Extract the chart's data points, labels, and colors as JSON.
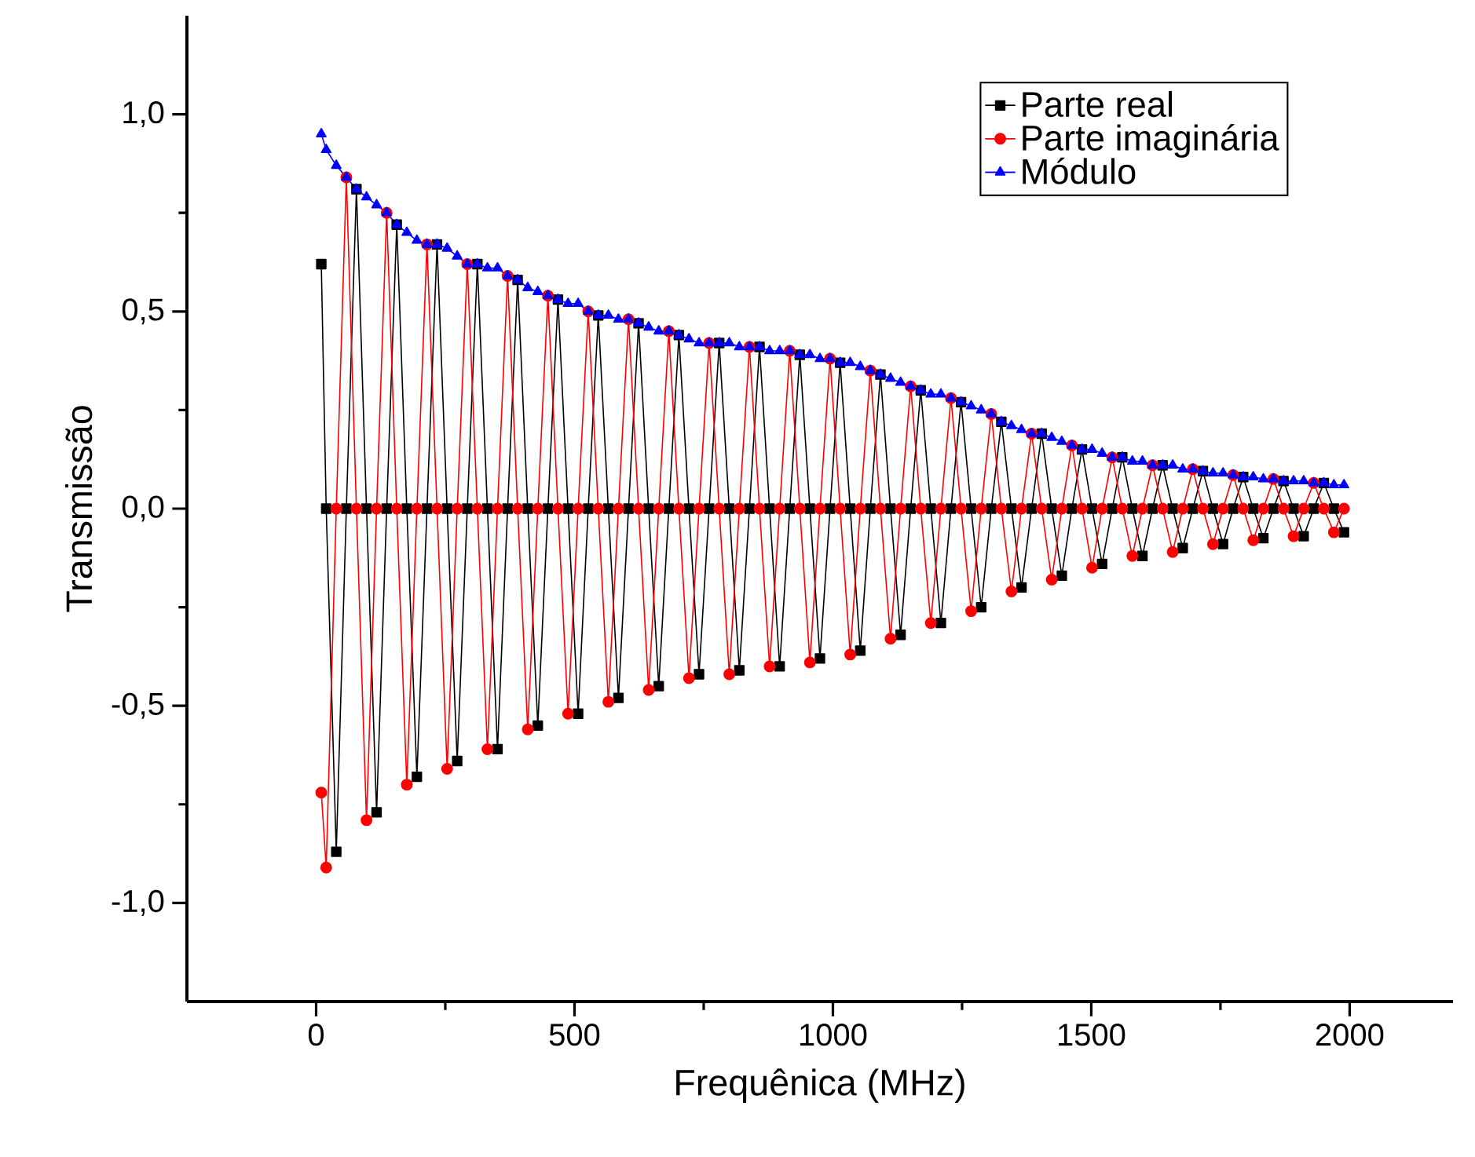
{
  "chart_data": {
    "type": "line",
    "xlabel": "Frequênica (MHz)",
    "ylabel": "Transmissão",
    "xlim": [
      -250,
      2200
    ],
    "ylim": [
      -1.25,
      1.25
    ],
    "xticks": [
      0,
      500,
      1000,
      1500,
      2000
    ],
    "yticks": [
      {
        "value": -1.0,
        "label": "-1,0"
      },
      {
        "value": -0.5,
        "label": "-0,5"
      },
      {
        "value": 0.0,
        "label": "0,0"
      },
      {
        "value": 0.5,
        "label": "0,5"
      },
      {
        "value": 1.0,
        "label": "1,0"
      }
    ],
    "legend": "top right",
    "grid": false,
    "x": [
      10,
      19.5,
      39,
      58.5,
      78,
      97.5,
      117,
      136.5,
      156,
      175.5,
      195,
      214.5,
      234,
      253.5,
      273,
      292.5,
      312,
      331.5,
      351,
      370.5,
      390,
      409.5,
      429,
      448.5,
      468,
      487.5,
      507,
      526.5,
      546,
      565.5,
      585,
      604.5,
      624,
      643.5,
      663,
      682.5,
      702,
      721.5,
      741,
      760.5,
      780,
      799.5,
      819,
      838.5,
      858,
      877.5,
      897,
      916.5,
      936,
      955.5,
      975,
      994.5,
      1014,
      1033.5,
      1053,
      1072.5,
      1092,
      1111.5,
      1131,
      1150.5,
      1170,
      1189.5,
      1209,
      1228.5,
      1248,
      1267.5,
      1287,
      1306.5,
      1326,
      1345.5,
      1365,
      1384.5,
      1404,
      1423.5,
      1443,
      1462.5,
      1482,
      1501.5,
      1521,
      1540.5,
      1560,
      1579.5,
      1599,
      1618.5,
      1638,
      1657.5,
      1677,
      1696.5,
      1716,
      1735.5,
      1755,
      1774.5,
      1794,
      1813.5,
      1833,
      1852.5,
      1872,
      1891.5,
      1911,
      1930.5,
      1950,
      1969.5,
      1989
    ],
    "series": [
      {
        "name": "Parte real",
        "color": "#000000",
        "marker": "square",
        "values": [
          0.62,
          0,
          -0.87,
          0,
          0.81,
          0,
          -0.77,
          0,
          0.72,
          0,
          -0.68,
          0,
          0.67,
          0,
          -0.64,
          0,
          0.62,
          0,
          -0.61,
          0,
          0.58,
          0,
          -0.55,
          0,
          0.53,
          0,
          -0.52,
          0,
          0.49,
          0,
          -0.48,
          0,
          0.47,
          0,
          -0.45,
          0,
          0.44,
          0,
          -0.42,
          0,
          0.42,
          0,
          -0.41,
          0,
          0.41,
          0,
          -0.4,
          0,
          0.39,
          0,
          -0.38,
          0,
          0.37,
          0,
          -0.36,
          0,
          0.34,
          0,
          -0.32,
          0,
          0.3,
          0,
          -0.29,
          0,
          0.27,
          0,
          -0.25,
          0,
          0.22,
          0,
          -0.2,
          0,
          0.19,
          0,
          -0.17,
          0,
          0.15,
          0,
          -0.14,
          0,
          0.13,
          0,
          -0.12,
          0,
          0.11,
          0,
          -0.1,
          0,
          0.095,
          0,
          -0.09,
          0,
          0.08,
          0,
          -0.075,
          0,
          0.07,
          0,
          -0.07,
          0,
          0.065,
          0,
          -0.06
        ]
      },
      {
        "name": "Parte imaginária",
        "color": "#ff0000",
        "marker": "circle",
        "values": [
          -0.72,
          -0.91,
          0,
          0.84,
          0,
          -0.79,
          0,
          0.75,
          0,
          -0.7,
          0,
          0.67,
          0,
          -0.66,
          0,
          0.62,
          0,
          -0.61,
          0,
          0.59,
          0,
          -0.56,
          0,
          0.54,
          0,
          -0.52,
          0,
          0.5,
          0,
          -0.49,
          0,
          0.48,
          0,
          -0.46,
          0,
          0.45,
          0,
          -0.43,
          0,
          0.42,
          0,
          -0.42,
          0,
          0.41,
          0,
          -0.4,
          0,
          0.4,
          0,
          -0.39,
          0,
          0.38,
          0,
          -0.37,
          0,
          0.35,
          0,
          -0.33,
          0,
          0.31,
          0,
          -0.29,
          0,
          0.28,
          0,
          -0.26,
          0,
          0.24,
          0,
          -0.21,
          0,
          0.19,
          0,
          -0.18,
          0,
          0.16,
          0,
          -0.15,
          0,
          0.13,
          0,
          -0.12,
          0,
          0.11,
          0,
          -0.11,
          0,
          0.1,
          0,
          -0.09,
          0,
          0.085,
          0,
          -0.08,
          0,
          0.075,
          0,
          -0.07,
          0,
          0.065,
          0,
          -0.06,
          0
        ]
      },
      {
        "name": "Módulo",
        "color": "#0000ff",
        "marker": "triangle",
        "values": [
          0.95,
          0.91,
          0.87,
          0.84,
          0.81,
          0.79,
          0.77,
          0.75,
          0.72,
          0.7,
          0.68,
          0.67,
          0.67,
          0.66,
          0.64,
          0.62,
          0.62,
          0.61,
          0.61,
          0.59,
          0.58,
          0.56,
          0.55,
          0.54,
          0.53,
          0.52,
          0.52,
          0.5,
          0.49,
          0.49,
          0.48,
          0.48,
          0.47,
          0.46,
          0.45,
          0.45,
          0.44,
          0.43,
          0.42,
          0.42,
          0.42,
          0.42,
          0.41,
          0.41,
          0.41,
          0.4,
          0.4,
          0.4,
          0.39,
          0.39,
          0.38,
          0.38,
          0.37,
          0.37,
          0.36,
          0.35,
          0.34,
          0.33,
          0.32,
          0.31,
          0.3,
          0.29,
          0.29,
          0.28,
          0.27,
          0.26,
          0.25,
          0.24,
          0.22,
          0.21,
          0.2,
          0.19,
          0.19,
          0.18,
          0.17,
          0.16,
          0.15,
          0.15,
          0.14,
          0.13,
          0.13,
          0.12,
          0.12,
          0.11,
          0.11,
          0.11,
          0.1,
          0.1,
          0.095,
          0.09,
          0.09,
          0.085,
          0.08,
          0.08,
          0.075,
          0.075,
          0.07,
          0.07,
          0.07,
          0.065,
          0.065,
          0.06,
          0.06
        ]
      }
    ]
  }
}
